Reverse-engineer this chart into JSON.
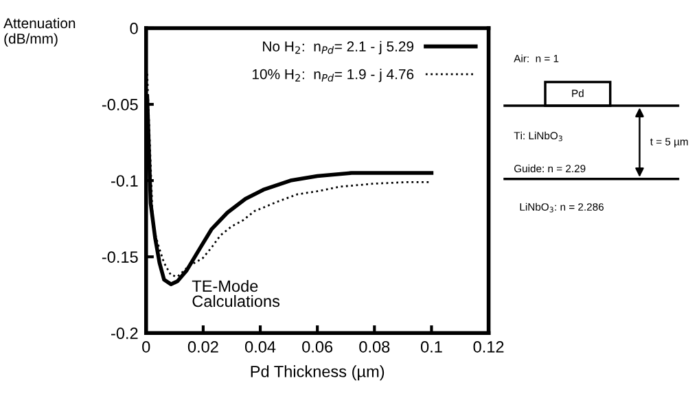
{
  "chart_data": {
    "type": "line",
    "xlabel": "Pd Thickness (µm)",
    "ylabel": "Attenuation\n(dB/mm)",
    "xlim": [
      0,
      0.12
    ],
    "ylim": [
      -0.2,
      0
    ],
    "xticks": [
      0,
      0.02,
      0.04,
      0.06,
      0.08,
      0.1,
      0.12
    ],
    "yticks": [
      0,
      -0.05,
      -0.1,
      -0.15,
      -0.2
    ],
    "grid": false,
    "legend": "top right",
    "series": [
      {
        "name": "No H$_{2}$:  n$_{Pd}$= 2.1 - j 5.29",
        "color": "#000000",
        "line_style": "solid",
        "x": [
          0.0004,
          0.0016,
          0.0032,
          0.0047,
          0.0063,
          0.0087,
          0.011,
          0.0142,
          0.019,
          0.0229,
          0.0285,
          0.0348,
          0.0411,
          0.0506,
          0.06,
          0.072,
          0.1
        ],
        "values": [
          -0.045,
          -0.115,
          -0.138,
          -0.154,
          -0.165,
          -0.168,
          -0.166,
          -0.159,
          -0.144,
          -0.132,
          -0.121,
          -0.112,
          -0.106,
          -0.1,
          -0.097,
          -0.095,
          -0.095
        ]
      },
      {
        "name": "10% H$_{2}$:  n$_{Pd}$= 1.9 - j 4.76",
        "color": "#000000",
        "line_style": "dotted",
        "x": [
          0.0004,
          0.0024,
          0.0047,
          0.0063,
          0.0087,
          0.011,
          0.015,
          0.0198,
          0.0229,
          0.026,
          0.03,
          0.034,
          0.038,
          0.042,
          0.0458,
          0.053,
          0.06,
          0.068,
          0.08,
          0.0917,
          0.0996
        ],
        "values": [
          -0.03,
          -0.13,
          -0.145,
          -0.154,
          -0.162,
          -0.163,
          -0.156,
          -0.151,
          -0.144,
          -0.136,
          -0.13,
          -0.126,
          -0.12,
          -0.117,
          -0.114,
          -0.109,
          -0.107,
          -0.104,
          -0.102,
          -0.101,
          -0.101
        ]
      }
    ],
    "annotations": [
      "TE-Mode\nCalculations",
      "Air:  n = 1",
      "Pd",
      "Ti: LiNbO$_{3}$",
      "t = 5 µm",
      "Guide: n = 2.29",
      "LiNbO$_{3}$: n = 2.286"
    ]
  }
}
